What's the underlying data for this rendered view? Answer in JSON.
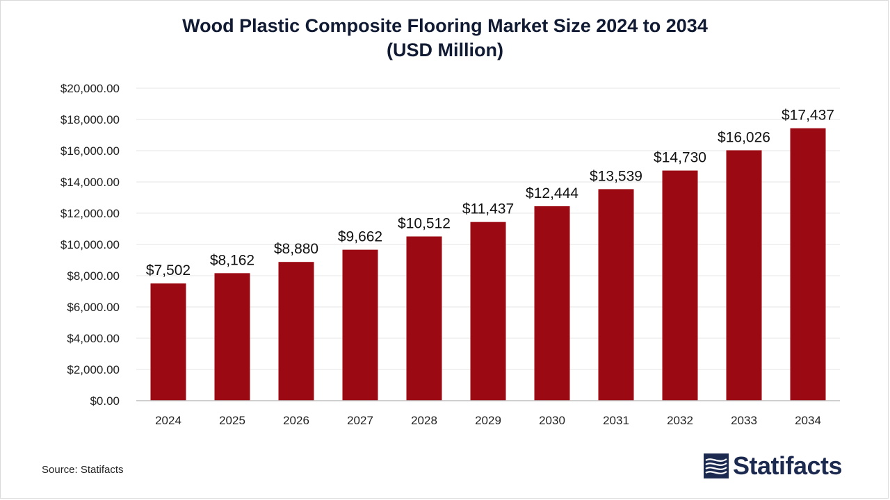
{
  "chart_data": {
    "type": "bar",
    "title_line1": "Wood Plastic Composite Flooring Market Size 2024 to 2034",
    "title_line2": "(USD Million)",
    "categories": [
      "2024",
      "2025",
      "2026",
      "2027",
      "2028",
      "2029",
      "2030",
      "2031",
      "2032",
      "2033",
      "2034"
    ],
    "values": [
      7502,
      8162,
      8880,
      9662,
      10512,
      11437,
      12444,
      13539,
      14730,
      16026,
      17437
    ],
    "value_labels": [
      "$7,502",
      "$8,162",
      "$8,880",
      "$9,662",
      "$10,512",
      "$11,437",
      "$12,444",
      "$13,539",
      "$14,730",
      "$16,026",
      "$17,437"
    ],
    "yticks": [
      0,
      2000,
      4000,
      6000,
      8000,
      10000,
      12000,
      14000,
      16000,
      18000,
      20000
    ],
    "ytick_labels": [
      "$0.00",
      "$2,000.00",
      "$4,000.00",
      "$6,000.00",
      "$8,000.00",
      "$10,000.00",
      "$12,000.00",
      "$14,000.00",
      "$16,000.00",
      "$18,000.00",
      "$20,000.00"
    ],
    "ylim": [
      0,
      20000
    ],
    "xlabel": "",
    "ylabel": "",
    "grid": true,
    "legend": "none",
    "bar_color": "#9b0a12"
  },
  "source": "Source: Statifacts",
  "brand": {
    "name": "Statifacts",
    "logo_icon": "statifacts-logo-icon",
    "color": "#1d2a4f"
  }
}
